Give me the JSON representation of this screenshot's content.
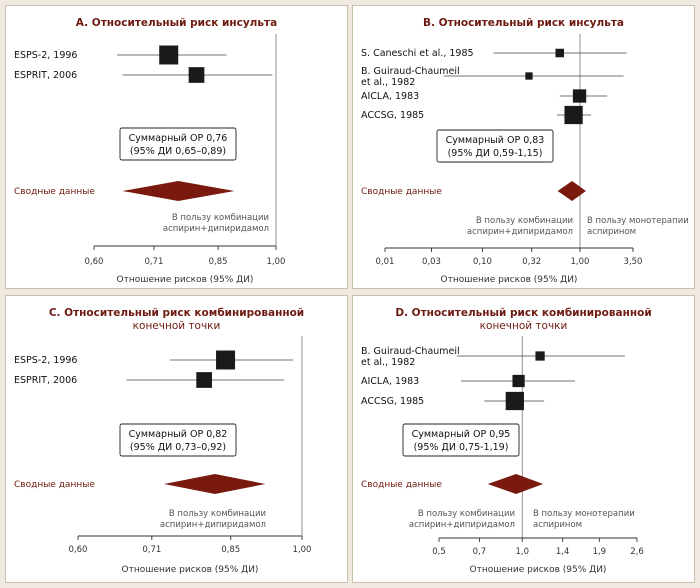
{
  "colors": {
    "diamond": "#7a1a0f",
    "title": "#6f1a10",
    "marker": "#1a1a1a",
    "background": "#f0e9df"
  },
  "chart_data": [
    {
      "type": "forest",
      "panel_letter": "A.",
      "title_lines": [
        "Относительный риск инсульта"
      ],
      "xlabel": "Отношение рисков (95% ДИ)",
      "xscale": "log",
      "xticks": [
        "0,60",
        "0,71",
        "0,85",
        "1,00"
      ],
      "xlim": [
        0.6,
        1.0
      ],
      "studies": [
        {
          "label_lines": [
            "ESPS-2, 1996"
          ],
          "est": 0.74,
          "lo": 0.64,
          "hi": 0.87,
          "weight": 1.0
        },
        {
          "label_lines": [
            "ESPRIT, 2006"
          ],
          "est": 0.8,
          "lo": 0.65,
          "hi": 0.99,
          "weight": 0.78
        }
      ],
      "summary": {
        "label": "Сводные данные",
        "est": 0.76,
        "lo": 0.65,
        "hi": 0.89,
        "box_lines": [
          "Суммарный ОР 0,76",
          "(95% ДИ 0,65–0,89)"
        ]
      },
      "favor_left_lines": [
        "В пользу комбинации",
        "аспирин+дипиридамол"
      ],
      "favor_right_lines": []
    },
    {
      "type": "forest",
      "panel_letter": "B.",
      "title_lines": [
        "Относительный риск инсульта"
      ],
      "xlabel": "Отношение рисков (95% ДИ)",
      "xscale": "log",
      "xticks": [
        "0,01",
        "0,03",
        "0,10",
        "0,32",
        "1,00",
        "3,50"
      ],
      "xlim": [
        0.01,
        3.5
      ],
      "studies": [
        {
          "label_lines": [
            "S. Caneschi et al., 1985"
          ],
          "est": 0.62,
          "lo": 0.13,
          "hi": 3.0,
          "weight": 0.3
        },
        {
          "label_lines": [
            "B. Guiraud-Chaumeil",
            "et al., 1982"
          ],
          "est": 0.3,
          "lo": 0.04,
          "hi": 2.8,
          "weight": 0.22
        },
        {
          "label_lines": [
            "AICLA, 1983"
          ],
          "est": 0.99,
          "lo": 0.62,
          "hi": 1.9,
          "weight": 0.62
        },
        {
          "label_lines": [
            "ACCSG, 1985"
          ],
          "est": 0.86,
          "lo": 0.58,
          "hi": 1.3,
          "weight": 0.95
        }
      ],
      "summary": {
        "label": "Сводные данные",
        "est": 0.83,
        "lo": 0.59,
        "hi": 1.15,
        "box_lines": [
          "Суммарный ОР 0,83",
          "(95% ДИ 0,59-1,15)"
        ]
      },
      "favor_left_lines": [
        "В пользу комбинации",
        "аспирин+дипиридамол"
      ],
      "favor_right_lines": [
        "В пользу монотерапии",
        "аспирином"
      ]
    },
    {
      "type": "forest",
      "panel_letter": "C.",
      "title_lines": [
        "Относительный риск комбинированной",
        "конечной точки"
      ],
      "xlabel": "Отношение рисков (95% ДИ)",
      "xscale": "log",
      "xticks": [
        "0,60",
        "0,71",
        "0,85",
        "1,00"
      ],
      "xlim": [
        0.6,
        1.0
      ],
      "studies": [
        {
          "label_lines": [
            "ESPS-2, 1996"
          ],
          "est": 0.84,
          "lo": 0.74,
          "hi": 0.98,
          "weight": 1.0
        },
        {
          "label_lines": [
            "ESPRIT, 2006"
          ],
          "est": 0.8,
          "lo": 0.67,
          "hi": 0.96,
          "weight": 0.78
        }
      ],
      "summary": {
        "label": "Сводные данные",
        "est": 0.82,
        "lo": 0.73,
        "hi": 0.92,
        "box_lines": [
          "Суммарный ОР 0,82",
          "(95% ДИ 0,73–0,92)"
        ]
      },
      "favor_left_lines": [
        "В пользу комбинации",
        "аспирин+дипиридамол"
      ],
      "favor_right_lines": []
    },
    {
      "type": "forest",
      "panel_letter": "D.",
      "title_lines": [
        "Относительный риск комбинированной",
        "конечной точки"
      ],
      "xlabel": "Отношение рисков (95% ДИ)",
      "xscale": "log",
      "xticks": [
        "0,5",
        "0,7",
        "1,0",
        "1,4",
        "1,9",
        "2,6"
      ],
      "xlim": [
        0.5,
        2.6
      ],
      "studies": [
        {
          "label_lines": [
            "B. Guiraud-Chaumeil",
            "et al., 1982"
          ],
          "est": 1.16,
          "lo": 0.58,
          "hi": 2.35,
          "weight": 0.35
        },
        {
          "label_lines": [
            "AICLA, 1983"
          ],
          "est": 0.97,
          "lo": 0.6,
          "hi": 1.55,
          "weight": 0.55
        },
        {
          "label_lines": [
            "ACCSG, 1985"
          ],
          "est": 0.94,
          "lo": 0.73,
          "hi": 1.2,
          "weight": 0.95
        }
      ],
      "summary": {
        "label": "Сводные данные",
        "est": 0.95,
        "lo": 0.75,
        "hi": 1.19,
        "box_lines": [
          "Суммарный ОР 0,95",
          "(95% ДИ 0,75-1,19)"
        ]
      },
      "favor_left_lines": [
        "В пользу комбинации",
        "аспирин+дипиридамол"
      ],
      "favor_right_lines": [
        "В пользу монотерапии",
        "аспирином"
      ]
    }
  ]
}
